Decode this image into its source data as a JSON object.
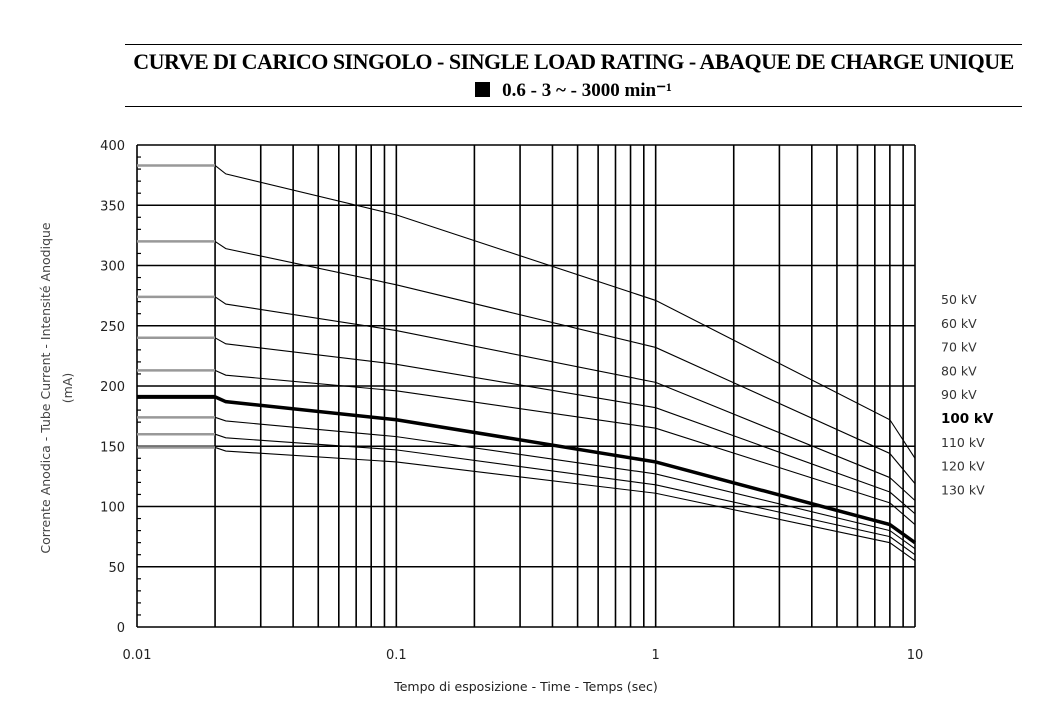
{
  "chart_data": {
    "type": "line",
    "title": "CURVE DI CARICO SINGOLO - SINGLE LOAD RATING - ABAQUE DE CHARGE UNIQUE",
    "subtitle": "0.6  -  3 ~  -  3000 min⁻¹",
    "xlabel": "Tempo di esposizione - Time - Temps  (sec)",
    "ylabel": "Corrente Anodica - Tube Current - Intensité Anodique",
    "ylabel_unit": "(mA)",
    "xscale": "log",
    "xlim": [
      0.01,
      10
    ],
    "ylim": [
      0,
      400
    ],
    "grid": true,
    "x_ticks": [
      "0.01",
      "0.1",
      "1",
      "10"
    ],
    "y_ticks": [
      "0",
      "50",
      "100",
      "150",
      "200",
      "250",
      "300",
      "350",
      "400"
    ],
    "legend_position": "right",
    "x": [
      0.01,
      0.02,
      0.022,
      0.1,
      1,
      8,
      10
    ],
    "series": [
      {
        "name": "50 kV",
        "values": [
          383,
          383,
          376,
          342,
          271,
          172,
          140
        ],
        "bold": false
      },
      {
        "name": "60 kV",
        "values": [
          320,
          320,
          314,
          284,
          232,
          144,
          119
        ],
        "bold": false
      },
      {
        "name": "70 kV",
        "values": [
          274,
          274,
          268,
          246,
          203,
          124,
          105
        ],
        "bold": false
      },
      {
        "name": "80 kV",
        "values": [
          240,
          240,
          235,
          218,
          182,
          112,
          94
        ],
        "bold": false
      },
      {
        "name": "90 kV",
        "values": [
          213,
          213,
          209,
          196,
          165,
          103,
          85
        ],
        "bold": false
      },
      {
        "name": "100 kV",
        "values": [
          191,
          191,
          187,
          172,
          137,
          85,
          70
        ],
        "bold": true
      },
      {
        "name": "110 kV",
        "values": [
          174,
          174,
          171,
          158,
          127,
          80,
          65
        ],
        "bold": false
      },
      {
        "name": "120 kV",
        "values": [
          160,
          160,
          157,
          147,
          118,
          75,
          60
        ],
        "bold": false
      },
      {
        "name": "130 kV",
        "values": [
          149,
          149,
          146,
          137,
          111,
          70,
          55
        ],
        "bold": false
      }
    ]
  }
}
